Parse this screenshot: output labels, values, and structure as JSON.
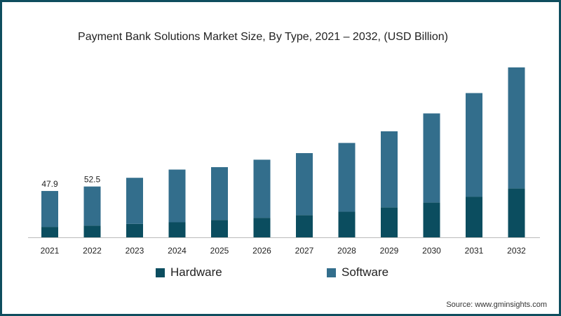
{
  "chart_data": {
    "type": "bar",
    "stacked": true,
    "title": "Payment Bank Solutions Market Size, By Type, 2021 – 2032, (USD Billion)",
    "categories": [
      "2021",
      "2022",
      "2023",
      "2024",
      "2025",
      "2026",
      "2027",
      "2028",
      "2029",
      "2030",
      "2031",
      "2032"
    ],
    "series": [
      {
        "name": "Hardware",
        "color": "#0b4d5f",
        "values": [
          10.8,
          12.2,
          13.9,
          15.6,
          18.0,
          20.2,
          23.0,
          26.5,
          31.0,
          36.0,
          42.0,
          50.5
        ]
      },
      {
        "name": "Software",
        "color": "#336e8c",
        "values": [
          37.1,
          40.3,
          47.6,
          54.4,
          54.5,
          60.0,
          64.0,
          71.0,
          78.5,
          92.0,
          107.0,
          125.0
        ]
      }
    ],
    "data_labels": [
      {
        "category": "2021",
        "text": "47.9"
      },
      {
        "category": "2022",
        "text": "52.5"
      }
    ],
    "ylim": [
      0,
      185
    ],
    "grid": false,
    "legend_position": "bottom"
  },
  "source": "Source: www.gminsights.com"
}
